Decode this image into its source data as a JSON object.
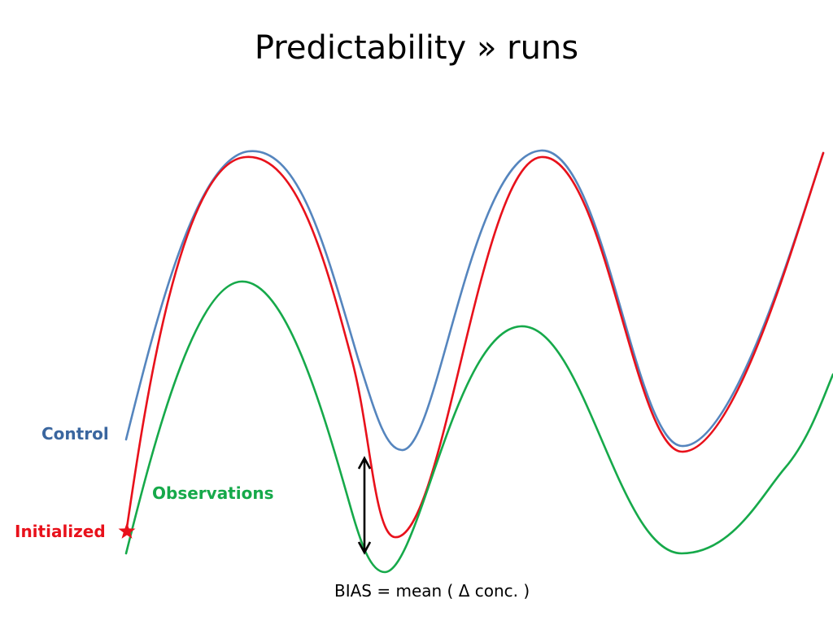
{
  "slide": {
    "title": "Predictability » runs"
  },
  "labels": {
    "control": "Control",
    "observations": "Observations",
    "initialized": "Initialized",
    "bias": "BIAS = mean ( Δ conc. )"
  },
  "colors": {
    "control": "#5585BE",
    "initialized": "#E8111B",
    "observations": "#16A94A",
    "control_label": "#3A669F",
    "observations_label": "#16A94A",
    "initialized_label": "#E8111B",
    "arrow": "#000000",
    "text": "#000000"
  },
  "icons": {
    "start_marker": "star-icon",
    "bias_marker": "double-arrow-icon"
  }
}
